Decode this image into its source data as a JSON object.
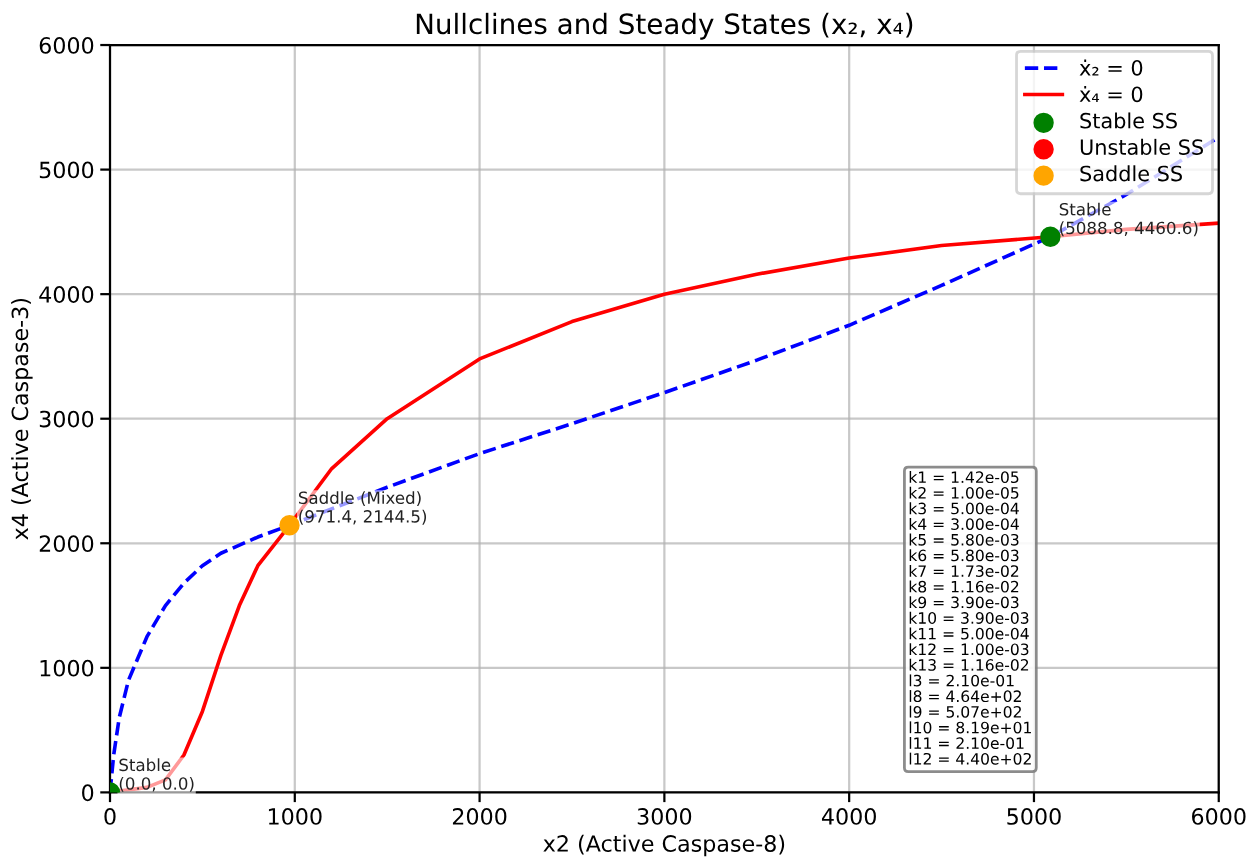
{
  "chart_data": {
    "type": "line",
    "title": "Nullclines and Steady States (x₂, x₄)",
    "xlabel": "x2 (Active Caspase-8)",
    "ylabel": "x4 (Active Caspase-3)",
    "series": [
      {
        "name": "ẋ₂ = 0",
        "color": "#0000ff",
        "line_style": "dashed",
        "x": [
          0,
          20,
          50,
          100,
          200,
          300,
          400,
          500,
          600,
          800,
          971.4,
          1500,
          2000,
          2500,
          3000,
          3500,
          4000,
          4500,
          5088.8,
          5500,
          6000
        ],
        "values": [
          0,
          300,
          600,
          900,
          1250,
          1500,
          1680,
          1820,
          1920,
          2050,
          2144.5,
          2450,
          2720,
          2960,
          3210,
          3470,
          3750,
          4070,
          4460.6,
          4800,
          5260
        ]
      },
      {
        "name": "ẋ₄ = 0",
        "color": "#ff0000",
        "line_style": "solid",
        "x": [
          0,
          200,
          300,
          400,
          500,
          600,
          700,
          800,
          971.4,
          1200,
          1500,
          2000,
          2500,
          3000,
          3500,
          4000,
          4500,
          5088.8,
          5500,
          6000
        ],
        "values": [
          0,
          40,
          100,
          300,
          650,
          1100,
          1500,
          1820,
          2144.5,
          2600,
          3000,
          3480,
          3780,
          4000,
          4160,
          4290,
          4390,
          4460.6,
          4520,
          4570
        ]
      },
      {
        "name": "Stable SS",
        "type": "scatter",
        "marker": "circle",
        "color": "#008000",
        "x": [
          0,
          5088.8
        ],
        "values": [
          0,
          4460.6
        ]
      },
      {
        "name": "Unstable SS",
        "type": "scatter",
        "marker": "circle",
        "color": "#ff0000"
      },
      {
        "name": "Saddle SS",
        "type": "scatter",
        "marker": "circle",
        "color": "#ffa500",
        "x": [
          971.4
        ],
        "values": [
          2144.5
        ]
      }
    ],
    "annotations": [
      {
        "text": "Stable\n(0.0, 0.0)",
        "x": 0,
        "y": 0
      },
      {
        "text": "Saddle (Mixed)\n(971.4, 2144.5)",
        "x": 971.4,
        "y": 2144.5
      },
      {
        "text": "Stable\n(5088.8, 4460.6)",
        "x": 5088.8,
        "y": 4460.6
      },
      "k1 = 1.42e-05\nk2 = 1.00e-05\nk3 = 5.00e-04\nk4 = 3.00e-04\nk5 = 5.80e-03\nk6 = 5.80e-03\nk7 = 1.73e-02\nk8 = 1.16e-02\nk9 = 3.90e-03\nk10 = 3.90e-03\nk11 = 5.00e-04\nk12 = 1.00e-03\nk13 = 1.16e-02\nl3 = 2.10e-01\nl8 = 4.64e+02\nl9 = 5.07e+02\nl10 = 8.19e+01\nl11 = 2.10e-01\nl12 = 4.40e+02"
    ],
    "xlim": [
      0,
      6000
    ],
    "ylim": [
      0,
      6000
    ],
    "xticks": [
      0,
      1000,
      2000,
      3000,
      4000,
      5000,
      6000
    ],
    "yticks": [
      0,
      1000,
      2000,
      3000,
      4000,
      5000,
      6000
    ],
    "grid": true,
    "legend": "top right"
  }
}
